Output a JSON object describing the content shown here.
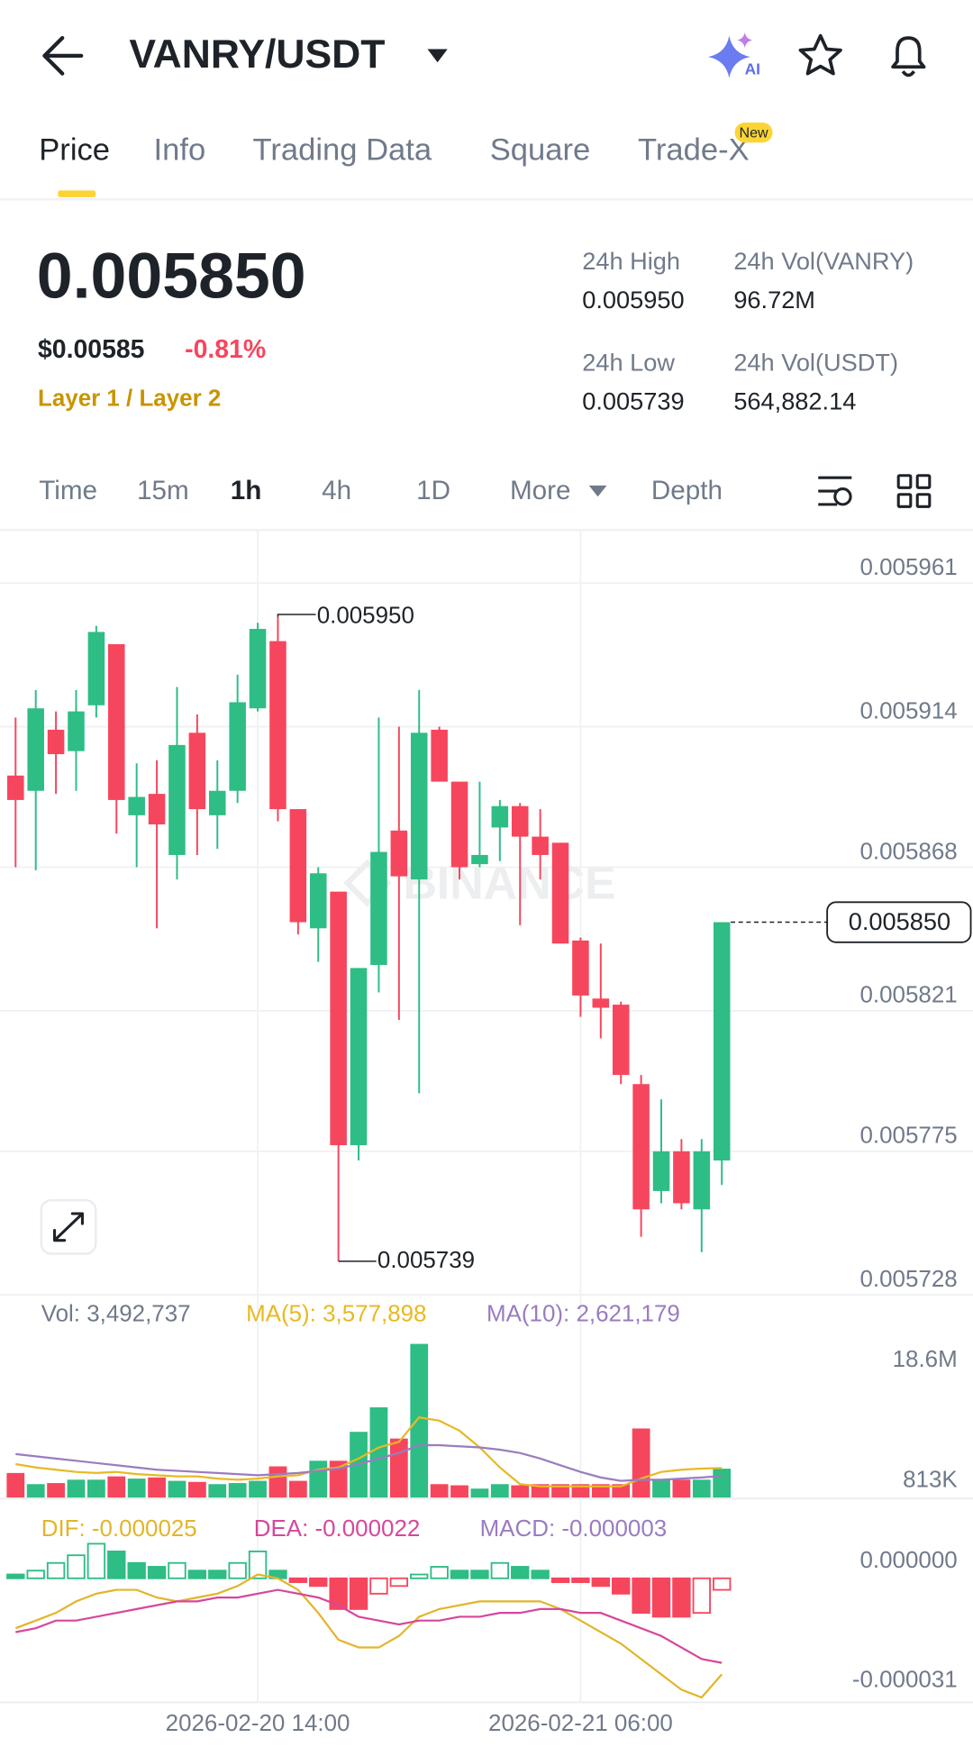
{
  "header": {
    "pair": "VANRY/USDT",
    "ai_badge": "AI"
  },
  "tabs": [
    "Price",
    "Info",
    "Trading Data",
    "Square",
    "Trade-X"
  ],
  "tab_badge": "New",
  "ticker": {
    "price": "0.005850",
    "usd_price": "$0.00585",
    "change": "-0.81%",
    "category": "Layer 1 / Layer 2",
    "stats": [
      {
        "label": "24h High",
        "value": "0.005950"
      },
      {
        "label": "24h Vol(VANRY)",
        "value": "96.72M"
      },
      {
        "label": "24h Low",
        "value": "0.005739"
      },
      {
        "label": "24h Vol(USDT)",
        "value": "564,882.14"
      }
    ]
  },
  "timeframes": [
    "Time",
    "15m",
    "1h",
    "4h",
    "1D",
    "More",
    "Depth"
  ],
  "indicators": {
    "vol": "Vol: 3,492,737",
    "ma5": "MA(5): 3,577,898",
    "ma10": "MA(10): 2,621,179",
    "dif": "DIF: -0.000025",
    "dea": "DEA: -0.000022",
    "macd": "MACD: -0.000003"
  },
  "watermark": "BINANCE",
  "chart_data": {
    "type": "candlestick",
    "categories": [
      null,
      null,
      null,
      null,
      null,
      null,
      null,
      null,
      null,
      null,
      null,
      null,
      "2026-02-20 14:00",
      null,
      null,
      null,
      null,
      null,
      null,
      null,
      null,
      null,
      null,
      null,
      null,
      null,
      null,
      null,
      "2026-02-21 06:00",
      null,
      null,
      null,
      null,
      null,
      null,
      null
    ],
    "open": [
      0.005898,
      0.005893,
      0.005913,
      0.005906,
      0.005921,
      0.005941,
      0.005885,
      0.005892,
      0.005872,
      0.005912,
      0.005885,
      0.005893,
      0.00592,
      0.005942,
      0.005887,
      0.005848,
      0.00586,
      0.005777,
      0.005836,
      0.00588,
      0.005864,
      0.005913,
      0.005896,
      0.005869,
      0.005881,
      0.005888,
      0.005878,
      0.005876,
      0.005844,
      0.005825,
      0.005823,
      0.005797,
      0.005762,
      0.005775,
      0.005756,
      0.005772
    ],
    "high": [
      0.005917,
      0.005926,
      0.005919,
      0.005926,
      0.005947,
      0.005941,
      0.005902,
      0.005903,
      0.005927,
      0.005918,
      0.005903,
      0.005931,
      0.005948,
      0.00595,
      0.005887,
      0.005868,
      0.00586,
      0.005835,
      0.005917,
      0.005914,
      0.005926,
      0.005914,
      0.005896,
      0.005896,
      0.00589,
      0.005889,
      0.005887,
      0.005876,
      0.005845,
      0.005843,
      0.005824,
      0.0058,
      0.005792,
      0.005779,
      0.005779,
      0.00585
    ],
    "low": [
      0.005868,
      0.005867,
      0.005892,
      0.005893,
      0.005917,
      0.005879,
      0.005868,
      0.005848,
      0.005864,
      0.005872,
      0.005874,
      0.005889,
      0.005919,
      0.005883,
      0.005846,
      0.005837,
      0.005739,
      0.005772,
      0.005827,
      0.005818,
      0.005794,
      0.005896,
      0.005864,
      0.005868,
      0.00587,
      0.005849,
      0.005864,
      0.005843,
      0.005819,
      0.005812,
      0.005797,
      0.005747,
      0.005758,
      0.005756,
      0.005742,
      0.005764
    ],
    "close": [
      0.00589,
      0.00592,
      0.005905,
      0.005919,
      0.005945,
      0.00589,
      0.005891,
      0.005882,
      0.005908,
      0.005887,
      0.005893,
      0.005922,
      0.005946,
      0.005887,
      0.00585,
      0.005866,
      0.005777,
      0.005835,
      0.005873,
      0.005865,
      0.005912,
      0.005896,
      0.005868,
      0.005872,
      0.005888,
      0.005878,
      0.005872,
      0.005843,
      0.005826,
      0.005822,
      0.0058,
      0.005756,
      0.005775,
      0.005758,
      0.005775,
      0.00585
    ],
    "up_color": "#2ebd85",
    "down_color": "#f6465d",
    "ylim": [
      0.005728,
      0.005978
    ],
    "yticks": [
      0.005961,
      0.005914,
      0.005868,
      0.005821,
      0.005775,
      0.005728
    ],
    "high_marker": {
      "value": 0.00595,
      "label": "0.005950"
    },
    "low_marker": 0.005739,
    "last_price": {
      "value": 0.00585,
      "label": "0.005850"
    },
    "volume": {
      "values": [
        2970000,
        1620000,
        1750000,
        2160000,
        2160000,
        2560000,
        2290000,
        2430000,
        2020000,
        1890000,
        1620000,
        1750000,
        2020000,
        3770000,
        2020000,
        4450000,
        4450000,
        7950000,
        10920000,
        7140000,
        18600000,
        1620000,
        1480000,
        1080000,
        1620000,
        1480000,
        1620000,
        1620000,
        1620000,
        1620000,
        1620000,
        8360000,
        2160000,
        2160000,
        2160000,
        3492737
      ],
      "ma5": [
        4044000,
        3640000,
        3370000,
        3100000,
        2966000,
        3100000,
        2831000,
        2696000,
        2561000,
        2561000,
        2292000,
        2157000,
        2292000,
        2561000,
        2696000,
        3370000,
        3640000,
        4718000,
        6066000,
        6740000,
        9706000,
        9301000,
        8088000,
        6066000,
        3640000,
        1618000,
        1348000,
        1348000,
        1348000,
        1348000,
        1348000,
        2292000,
        3100000,
        3370000,
        3505000,
        3577898
      ],
      "ma10": [
        5257000,
        4988000,
        4718000,
        4448000,
        4179000,
        3909000,
        3640000,
        3370000,
        3235000,
        3100000,
        2966000,
        2831000,
        2696000,
        2831000,
        2966000,
        3235000,
        3505000,
        4044000,
        4718000,
        5392000,
        6336000,
        6336000,
        6201000,
        6066000,
        5796000,
        5392000,
        4718000,
        3909000,
        3100000,
        2426000,
        2022000,
        2157000,
        2157000,
        2292000,
        2426000,
        2621179
      ],
      "ma5_color": "#e8b923",
      "ma10_color": "#9a7cc0",
      "ylim": [
        0,
        18600000
      ],
      "yticks": [
        {
          "value": 18600000,
          "label": "18.6M"
        },
        {
          "value": 813000,
          "label": "813K"
        }
      ]
    },
    "macd": {
      "dif": [
        -1.3e-05,
        -1.1e-05,
        -9e-06,
        -6e-06,
        -4e-06,
        -3e-06,
        -3e-06,
        -5e-06,
        -6e-06,
        -5e-06,
        -4e-06,
        -2e-06,
        1e-06,
        0,
        -3e-06,
        -9e-06,
        -1.6e-05,
        -1.8e-05,
        -1.8e-05,
        -1.5e-05,
        -1e-05,
        -8e-06,
        -7e-06,
        -6e-06,
        -6e-06,
        -6e-06,
        -6e-06,
        -8e-06,
        -1.1e-05,
        -1.4e-05,
        -1.7e-05,
        -2.1e-05,
        -2.5e-05,
        -2.9e-05,
        -3.1e-05,
        -2.5e-05
      ],
      "dea": [
        -1.4e-05,
        -1.3e-05,
        -1.1e-05,
        -1.1e-05,
        -1e-05,
        -9e-06,
        -8e-06,
        -7e-06,
        -6e-06,
        -6e-06,
        -5e-06,
        -5e-06,
        -4e-06,
        -3e-06,
        -4e-06,
        -5e-06,
        -7e-06,
        -1e-05,
        -1.1e-05,
        -1.2e-05,
        -1.1e-05,
        -1.1e-05,
        -1e-05,
        -1e-05,
        -9e-06,
        -9e-06,
        -8e-06,
        -8e-06,
        -9e-06,
        -9e-06,
        -1.1e-05,
        -1.3e-05,
        -1.5e-05,
        -1.8e-05,
        -2.1e-05,
        -2.2e-05
      ],
      "hist": [
        1e-06,
        2e-06,
        4e-06,
        6e-06,
        9e-06,
        7e-06,
        4e-06,
        3e-06,
        4e-06,
        2e-06,
        2e-06,
        4e-06,
        7e-06,
        2e-06,
        -1e-06,
        -2e-06,
        -8e-06,
        -8e-06,
        -4e-06,
        -2e-06,
        1e-06,
        3e-06,
        2e-06,
        2e-06,
        4e-06,
        3e-06,
        2e-06,
        -1e-06,
        -1e-06,
        -2e-06,
        -4e-06,
        -9e-06,
        -1e-05,
        -1e-05,
        -9e-06,
        -3e-06
      ],
      "dif_color": "#e2b52a",
      "dea_color": "#d6479c",
      "macd_color": "#9a7cc0",
      "ylim": [
        -3.2e-05,
        1.9e-05
      ],
      "yticks": [
        {
          "value": 0,
          "label": "0.000000"
        },
        -3.1e-05
      ]
    }
  }
}
